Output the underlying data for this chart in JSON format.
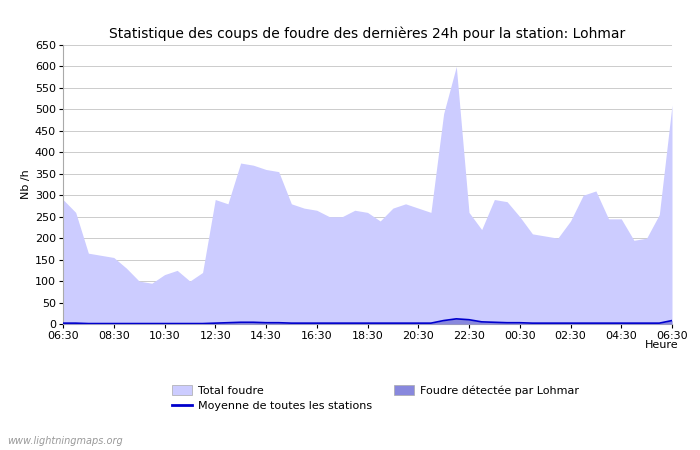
{
  "title": "Statistique des coups de foudre des dernières 24h pour la station: Lohmar",
  "xlabel": "Heure",
  "ylabel": "Nb /h",
  "watermark": "www.lightningmaps.org",
  "ylim": [
    0,
    650
  ],
  "yticks": [
    0,
    50,
    100,
    150,
    200,
    250,
    300,
    350,
    400,
    450,
    500,
    550,
    600,
    650
  ],
  "xtick_labels": [
    "06:30",
    "08:30",
    "10:30",
    "12:30",
    "14:30",
    "16:30",
    "18:30",
    "20:30",
    "22:30",
    "00:30",
    "02:30",
    "04:30",
    "06:30"
  ],
  "time_hours": [
    0,
    0.5,
    1.0,
    1.5,
    2.0,
    2.5,
    3.0,
    3.5,
    4.0,
    4.5,
    5.0,
    5.5,
    6.0,
    6.5,
    7.0,
    7.5,
    8.0,
    8.5,
    9.0,
    9.5,
    10.0,
    10.5,
    11.0,
    11.5,
    12.0,
    12.5,
    13.0,
    13.5,
    14.0,
    14.5,
    15.0,
    15.5,
    16.0,
    16.5,
    17.0,
    17.5,
    18.0,
    18.5,
    19.0,
    19.5,
    20.0,
    20.5,
    21.0,
    21.5,
    22.0,
    22.5,
    23.0,
    23.5,
    24.0
  ],
  "total_foudre": [
    290,
    260,
    165,
    160,
    155,
    130,
    100,
    95,
    115,
    125,
    100,
    120,
    290,
    280,
    375,
    370,
    360,
    355,
    280,
    270,
    265,
    250,
    250,
    265,
    260,
    240,
    270,
    280,
    270,
    260,
    490,
    600,
    260,
    220,
    290,
    285,
    250,
    210,
    205,
    200,
    240,
    300,
    310,
    245,
    245,
    195,
    200,
    255,
    510
  ],
  "foudre_lohmar": [
    2,
    2,
    1,
    1,
    1,
    1,
    1,
    1,
    1,
    1,
    1,
    1,
    2,
    3,
    4,
    4,
    3,
    3,
    2,
    2,
    2,
    2,
    2,
    2,
    2,
    2,
    2,
    2,
    2,
    2,
    8,
    12,
    10,
    5,
    4,
    3,
    3,
    2,
    2,
    2,
    2,
    2,
    2,
    2,
    2,
    2,
    2,
    2,
    8
  ],
  "moyenne": [
    2,
    2,
    1,
    1,
    1,
    1,
    1,
    1,
    1,
    1,
    1,
    1,
    2,
    3,
    4,
    4,
    3,
    3,
    2,
    2,
    2,
    2,
    2,
    2,
    2,
    2,
    2,
    2,
    2,
    2,
    8,
    12,
    10,
    5,
    4,
    3,
    3,
    2,
    2,
    2,
    2,
    2,
    2,
    2,
    2,
    2,
    2,
    2,
    8
  ],
  "fill_total_color": "#ccccff",
  "fill_lohmar_color": "#8888dd",
  "line_moyenne_color": "#0000cc",
  "bg_color": "#ffffff",
  "grid_color": "#cccccc",
  "title_fontsize": 10,
  "axis_fontsize": 8,
  "tick_fontsize": 8,
  "legend_fontsize": 8
}
